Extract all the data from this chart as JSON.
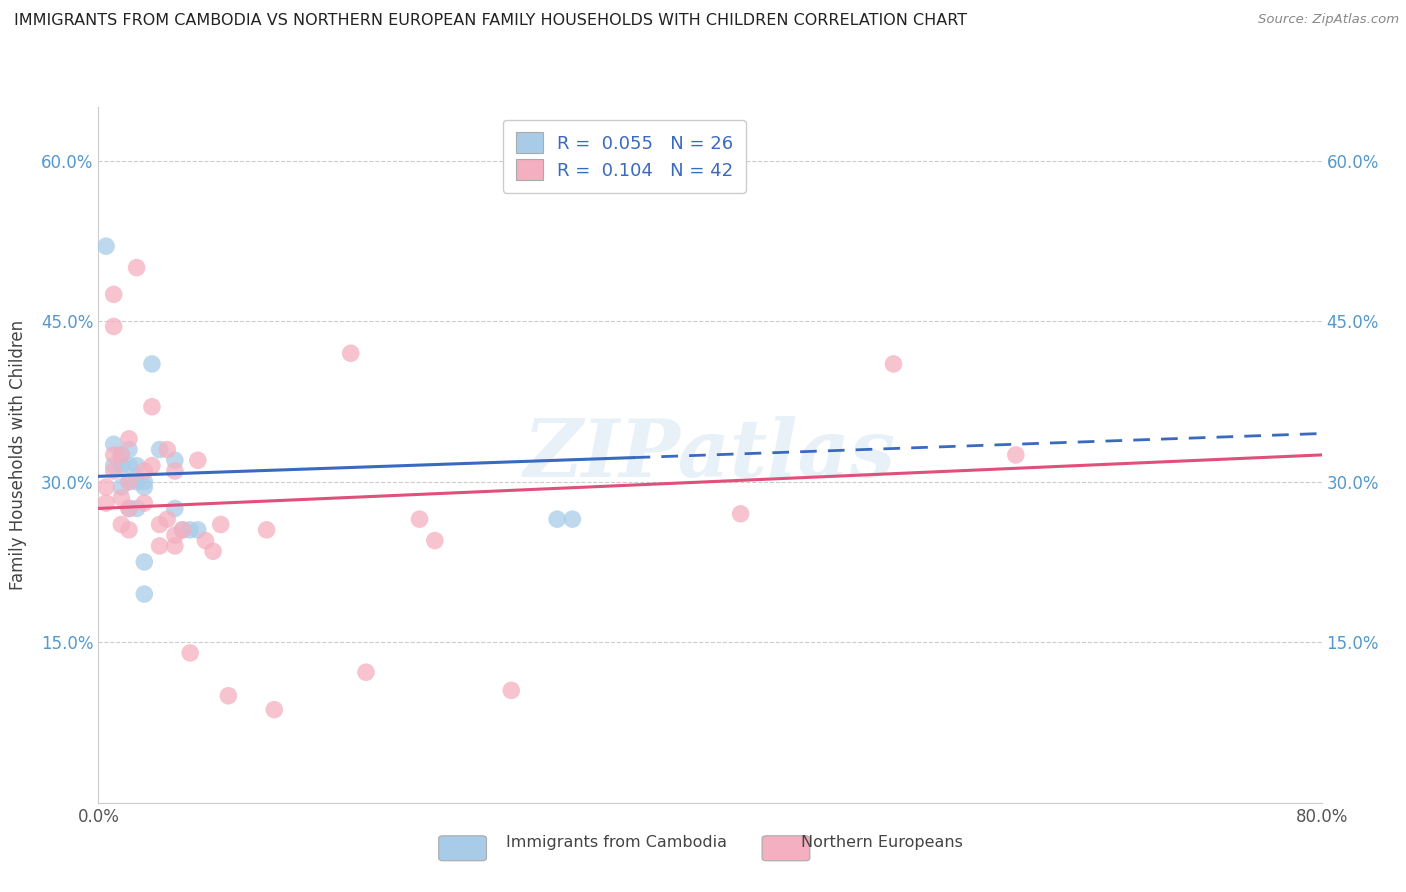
{
  "title": "IMMIGRANTS FROM CAMBODIA VS NORTHERN EUROPEAN FAMILY HOUSEHOLDS WITH CHILDREN CORRELATION CHART",
  "source": "Source: ZipAtlas.com",
  "ylabel": "Family Households with Children",
  "xlim": [
    0.0,
    0.8
  ],
  "ylim": [
    0.0,
    0.65
  ],
  "xticks": [
    0.0,
    0.1,
    0.2,
    0.3,
    0.4,
    0.5,
    0.6,
    0.7,
    0.8
  ],
  "xticklabels": [
    "0.0%",
    "",
    "",
    "",
    "",
    "",
    "",
    "",
    "80.0%"
  ],
  "ytick_positions": [
    0.15,
    0.3,
    0.45,
    0.6
  ],
  "ytick_labels": [
    "15.0%",
    "30.0%",
    "45.0%",
    "60.0%"
  ],
  "blue_color": "#a8cce8",
  "pink_color": "#f4afc0",
  "blue_line_color": "#3a6abf",
  "pink_line_color": "#e0507a",
  "watermark": "ZIPatlas",
  "grid_color": "#cccccc",
  "blue_scatter_x": [
    0.005,
    0.01,
    0.01,
    0.015,
    0.015,
    0.015,
    0.02,
    0.02,
    0.02,
    0.02,
    0.025,
    0.025,
    0.025,
    0.03,
    0.03,
    0.03,
    0.03,
    0.035,
    0.04,
    0.05,
    0.05,
    0.055,
    0.06,
    0.065,
    0.3,
    0.31
  ],
  "blue_scatter_y": [
    0.52,
    0.335,
    0.315,
    0.325,
    0.315,
    0.295,
    0.33,
    0.315,
    0.3,
    0.275,
    0.315,
    0.3,
    0.275,
    0.3,
    0.295,
    0.225,
    0.195,
    0.41,
    0.33,
    0.32,
    0.275,
    0.255,
    0.255,
    0.255,
    0.265,
    0.265
  ],
  "pink_scatter_x": [
    0.005,
    0.005,
    0.01,
    0.01,
    0.01,
    0.01,
    0.015,
    0.015,
    0.015,
    0.02,
    0.02,
    0.02,
    0.02,
    0.025,
    0.03,
    0.03,
    0.035,
    0.035,
    0.04,
    0.04,
    0.045,
    0.045,
    0.05,
    0.05,
    0.05,
    0.055,
    0.06,
    0.065,
    0.07,
    0.075,
    0.08,
    0.085,
    0.11,
    0.115,
    0.165,
    0.175,
    0.21,
    0.22,
    0.27,
    0.42,
    0.52,
    0.6
  ],
  "pink_scatter_y": [
    0.295,
    0.28,
    0.475,
    0.445,
    0.325,
    0.31,
    0.325,
    0.285,
    0.26,
    0.34,
    0.3,
    0.275,
    0.255,
    0.5,
    0.31,
    0.28,
    0.37,
    0.315,
    0.26,
    0.24,
    0.33,
    0.265,
    0.31,
    0.25,
    0.24,
    0.255,
    0.14,
    0.32,
    0.245,
    0.235,
    0.26,
    0.1,
    0.255,
    0.087,
    0.42,
    0.122,
    0.265,
    0.245,
    0.105,
    0.27,
    0.41,
    0.325
  ],
  "blue_line_solid_end": 0.35,
  "blue_line_x0": 0.0,
  "blue_line_x1": 0.8,
  "blue_line_y0": 0.305,
  "blue_line_y1": 0.345,
  "pink_line_x0": 0.0,
  "pink_line_x1": 0.8,
  "pink_line_y0": 0.275,
  "pink_line_y1": 0.325
}
